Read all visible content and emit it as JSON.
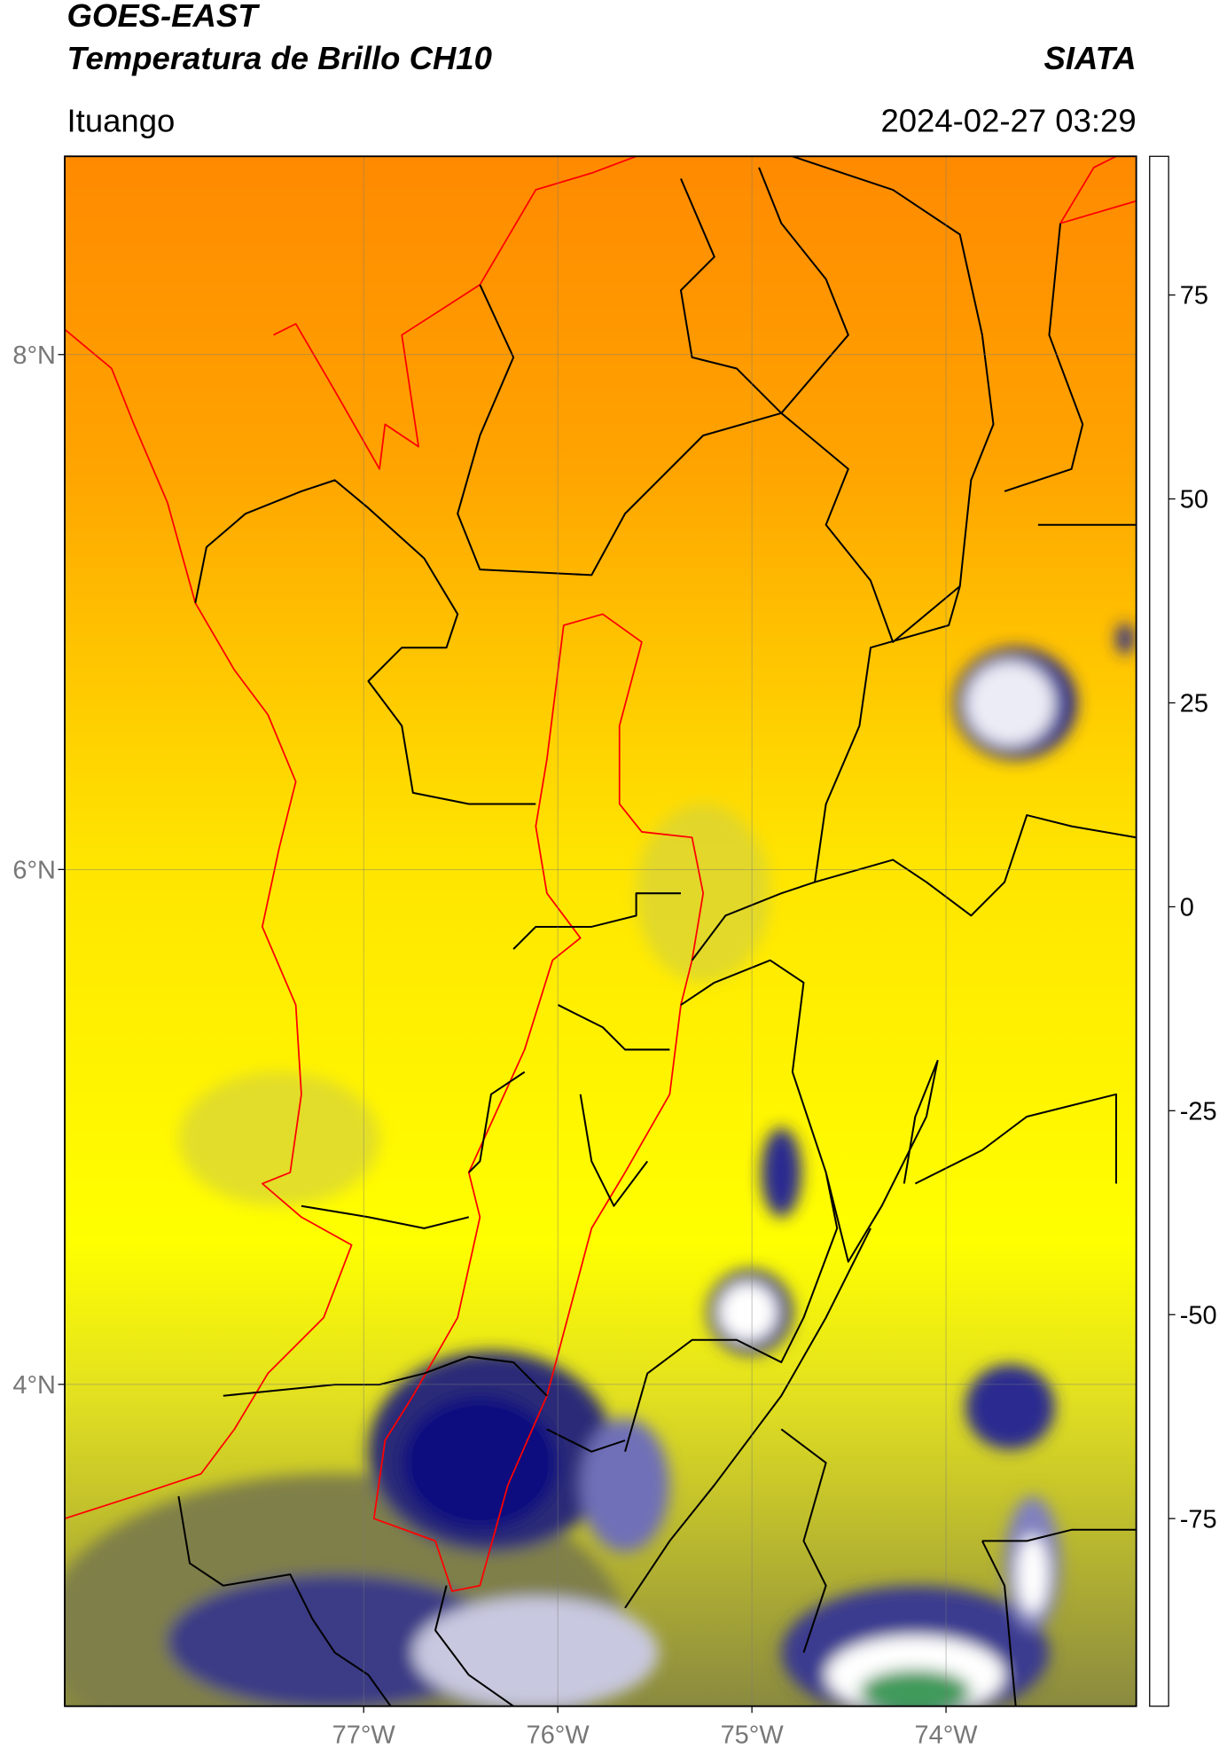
{
  "header": {
    "title": "GOES-EAST",
    "subtitle": "Temperatura de Brillo CH10",
    "agency": "SIATA",
    "place": "Ituango",
    "datetime": "2024-02-27 03:29"
  },
  "map": {
    "xlim": [
      -78.54,
      -73.02
    ],
    "ylim": [
      2.75,
      8.77
    ],
    "xticks": [
      {
        "value": -77,
        "label": "77°W"
      },
      {
        "value": -76,
        "label": "76°W"
      },
      {
        "value": -75,
        "label": "75°W"
      },
      {
        "value": -74,
        "label": "74°W"
      }
    ],
    "yticks": [
      {
        "value": 8,
        "label": "8°N"
      },
      {
        "value": 6,
        "label": "6°N"
      },
      {
        "value": 4,
        "label": "4°N"
      }
    ],
    "grid": true
  },
  "colorbar": {
    "lim": [
      -98,
      92
    ],
    "ticks": [
      75,
      50,
      25,
      0,
      -25,
      -50,
      -75
    ],
    "colormap": [
      {
        "value": -98,
        "color": "#ffffff"
      },
      {
        "value": -93.5,
        "color": "#ffffff"
      },
      {
        "value": -93.4,
        "color": "#00e5e0"
      },
      {
        "value": -80,
        "color": "#1f9f88"
      },
      {
        "value": -70,
        "color": "#2e8b2e"
      },
      {
        "value": -60,
        "color": "#a8d4a8"
      },
      {
        "value": -52,
        "color": "#ffffff"
      },
      {
        "value": -40,
        "color": "#7a7ac0"
      },
      {
        "value": -30,
        "color": "#0a0a80"
      },
      {
        "value": -25,
        "color": "#404060"
      },
      {
        "value": -20,
        "color": "#9a9a40"
      },
      {
        "value": -15,
        "color": "#e8e820"
      },
      {
        "value": -10,
        "color": "#ffff00"
      },
      {
        "value": 0,
        "color": "#ffa000"
      },
      {
        "value": 8,
        "color": "#ff4000"
      },
      {
        "value": 8.1,
        "color": "#ff0000"
      },
      {
        "value": 8.3,
        "color": "#000000"
      },
      {
        "value": 92,
        "color": "#000000"
      }
    ]
  }
}
